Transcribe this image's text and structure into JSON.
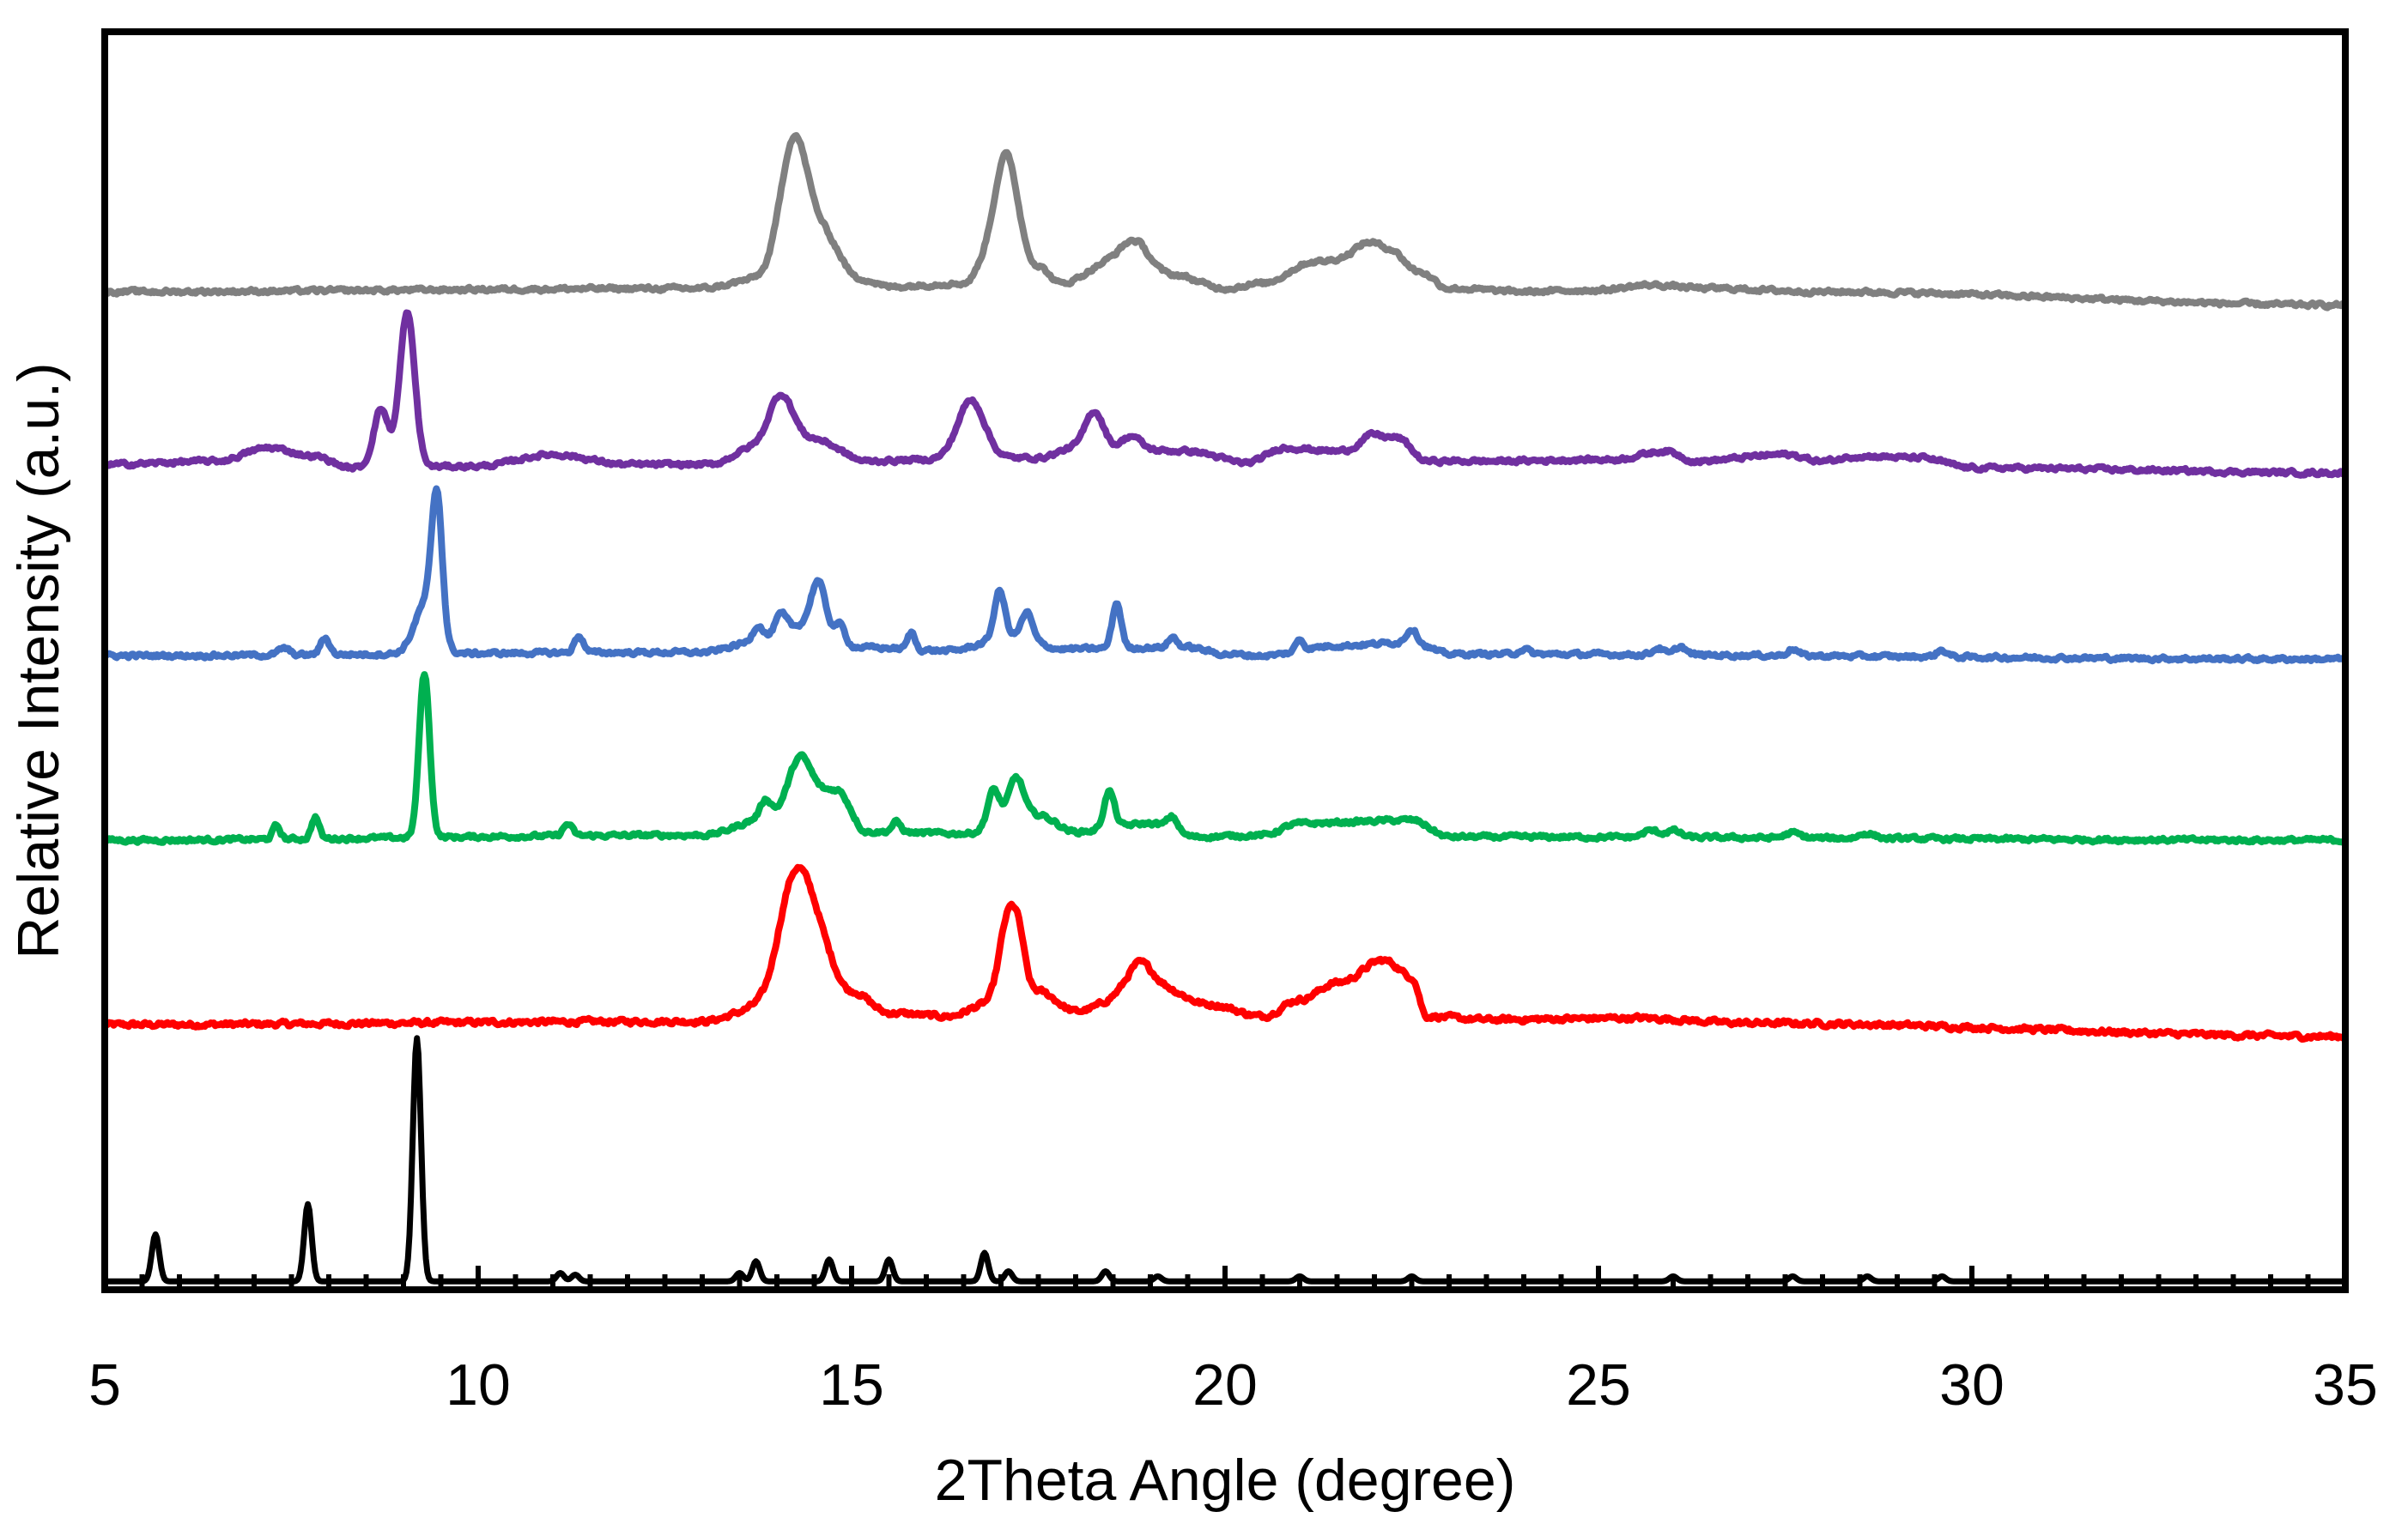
{
  "chart_data": {
    "type": "line",
    "title": "",
    "xlabel": "2Theta Angle (degree)",
    "ylabel": "Relative Intensity (a.u.)",
    "xlim": [
      5,
      35
    ],
    "ylim": [
      0,
      7.5
    ],
    "xticks": [
      5,
      10,
      15,
      20,
      25,
      30,
      35
    ],
    "minor_tick_step": 0.5,
    "grid": false,
    "legend": "none",
    "series": [
      {
        "name": "black",
        "color": "#000000",
        "offset": 0.0,
        "noise": 0.0,
        "points": [
          [
            5,
            0.05
          ],
          [
            5.7,
            0.05
          ],
          [
            7.7,
            0.05
          ],
          [
            9.2,
            0.05
          ],
          [
            35,
            0.05
          ]
        ],
        "peaks": [
          {
            "x": 5.68,
            "h": 0.28,
            "w": 0.05
          },
          {
            "x": 7.72,
            "h": 0.46,
            "w": 0.05
          },
          {
            "x": 9.18,
            "h": 1.45,
            "w": 0.055
          },
          {
            "x": 11.1,
            "h": 0.05,
            "w": 0.05
          },
          {
            "x": 11.3,
            "h": 0.04,
            "w": 0.05
          },
          {
            "x": 13.5,
            "h": 0.05,
            "w": 0.05
          },
          {
            "x": 13.72,
            "h": 0.12,
            "w": 0.05
          },
          {
            "x": 14.7,
            "h": 0.13,
            "w": 0.05
          },
          {
            "x": 15.5,
            "h": 0.13,
            "w": 0.05
          },
          {
            "x": 16.78,
            "h": 0.17,
            "w": 0.05
          },
          {
            "x": 17.1,
            "h": 0.06,
            "w": 0.05
          },
          {
            "x": 18.4,
            "h": 0.06,
            "w": 0.05
          },
          {
            "x": 19.1,
            "h": 0.03,
            "w": 0.05
          },
          {
            "x": 21.0,
            "h": 0.03,
            "w": 0.05
          },
          {
            "x": 22.5,
            "h": 0.03,
            "w": 0.05
          },
          {
            "x": 26.0,
            "h": 0.03,
            "w": 0.05
          },
          {
            "x": 27.6,
            "h": 0.03,
            "w": 0.05
          },
          {
            "x": 28.6,
            "h": 0.03,
            "w": 0.05
          },
          {
            "x": 29.6,
            "h": 0.03,
            "w": 0.05
          }
        ]
      },
      {
        "name": "red",
        "color": "#ff0000",
        "offset": 1.58,
        "noise": 0.025,
        "points": [
          [
            5,
            0.0
          ],
          [
            13,
            0.02
          ],
          [
            13.8,
            0.1
          ],
          [
            14.5,
            0.5
          ],
          [
            15,
            0.2
          ],
          [
            15.5,
            0.07
          ],
          [
            16.3,
            0.05
          ],
          [
            16.8,
            0.12
          ],
          [
            17.5,
            0.2
          ],
          [
            18,
            0.08
          ],
          [
            19,
            0.25
          ],
          [
            19.8,
            0.12
          ],
          [
            20.5,
            0.05
          ],
          [
            21,
            0.15
          ],
          [
            21.5,
            0.25
          ],
          [
            22.2,
            0.33
          ],
          [
            22.5,
            0.28
          ],
          [
            22.7,
            0.05
          ],
          [
            23.5,
            0.03
          ],
          [
            25.5,
            0.04
          ],
          [
            27,
            0.01
          ],
          [
            35,
            -0.07
          ]
        ],
        "peaks": [
          {
            "x": 14.22,
            "h": 0.55,
            "w": 0.22
          },
          {
            "x": 17.1,
            "h": 0.5,
            "w": 0.12
          },
          {
            "x": 17.25,
            "h": 0.2,
            "w": 0.08
          },
          {
            "x": 18.85,
            "h": 0.13,
            "w": 0.15
          },
          {
            "x": 22.05,
            "h": 0.06,
            "w": 0.2
          }
        ]
      },
      {
        "name": "green",
        "color": "#00b050",
        "offset": 2.68,
        "noise": 0.02,
        "points": [
          [
            5,
            0.0
          ],
          [
            13,
            0.03
          ],
          [
            14,
            0.15
          ],
          [
            14.8,
            0.3
          ],
          [
            15.2,
            0.05
          ],
          [
            16.5,
            0.04
          ],
          [
            17.5,
            0.15
          ],
          [
            18,
            0.05
          ],
          [
            19,
            0.1
          ],
          [
            19.6,
            0.02
          ],
          [
            20.5,
            0.03
          ],
          [
            21,
            0.1
          ],
          [
            22.5,
            0.12
          ],
          [
            23,
            0.02
          ],
          [
            35,
            0.0
          ]
        ],
        "peaks": [
          {
            "x": 7.3,
            "h": 0.08,
            "w": 0.05
          },
          {
            "x": 7.82,
            "h": 0.13,
            "w": 0.05
          },
          {
            "x": 9.28,
            "h": 0.98,
            "w": 0.07
          },
          {
            "x": 11.2,
            "h": 0.07,
            "w": 0.06
          },
          {
            "x": 13.85,
            "h": 0.1,
            "w": 0.07
          },
          {
            "x": 14.3,
            "h": 0.3,
            "w": 0.15
          },
          {
            "x": 15.6,
            "h": 0.06,
            "w": 0.06
          },
          {
            "x": 16.9,
            "h": 0.22,
            "w": 0.08
          },
          {
            "x": 17.2,
            "h": 0.25,
            "w": 0.1
          },
          {
            "x": 18.45,
            "h": 0.22,
            "w": 0.07
          },
          {
            "x": 19.3,
            "h": 0.08,
            "w": 0.07
          },
          {
            "x": 25.7,
            "h": 0.04,
            "w": 0.1
          },
          {
            "x": 26.0,
            "h": 0.04,
            "w": 0.1
          },
          {
            "x": 27.6,
            "h": 0.03,
            "w": 0.1
          },
          {
            "x": 28.6,
            "h": 0.03,
            "w": 0.1
          }
        ]
      },
      {
        "name": "blue",
        "color": "#4472c4",
        "offset": 3.78,
        "noise": 0.02,
        "points": [
          [
            5,
            0.0
          ],
          [
            13,
            0.02
          ],
          [
            13.7,
            0.08
          ],
          [
            14.5,
            0.2
          ],
          [
            15.1,
            0.05
          ],
          [
            16.3,
            0.03
          ],
          [
            17.2,
            0.12
          ],
          [
            17.8,
            0.04
          ],
          [
            19.5,
            0.05
          ],
          [
            20,
            0.01
          ],
          [
            20.5,
            0.0
          ],
          [
            21.5,
            0.06
          ],
          [
            22.5,
            0.08
          ],
          [
            23,
            0.01
          ],
          [
            35,
            -0.02
          ]
        ],
        "peaks": [
          {
            "x": 7.4,
            "h": 0.04,
            "w": 0.07
          },
          {
            "x": 7.95,
            "h": 0.1,
            "w": 0.06
          },
          {
            "x": 9.3,
            "h": 0.3,
            "w": 0.15
          },
          {
            "x": 9.45,
            "h": 0.8,
            "w": 0.07
          },
          {
            "x": 11.35,
            "h": 0.1,
            "w": 0.06
          },
          {
            "x": 13.75,
            "h": 0.1,
            "w": 0.07
          },
          {
            "x": 14.05,
            "h": 0.12,
            "w": 0.08
          },
          {
            "x": 14.55,
            "h": 0.25,
            "w": 0.09
          },
          {
            "x": 14.85,
            "h": 0.08,
            "w": 0.06
          },
          {
            "x": 15.8,
            "h": 0.1,
            "w": 0.05
          },
          {
            "x": 16.98,
            "h": 0.28,
            "w": 0.07
          },
          {
            "x": 17.35,
            "h": 0.15,
            "w": 0.07
          },
          {
            "x": 18.55,
            "h": 0.27,
            "w": 0.06
          },
          {
            "x": 19.3,
            "h": 0.06,
            "w": 0.06
          },
          {
            "x": 21.0,
            "h": 0.07,
            "w": 0.05
          },
          {
            "x": 22.5,
            "h": 0.08,
            "w": 0.07
          },
          {
            "x": 24.0,
            "h": 0.03,
            "w": 0.07
          },
          {
            "x": 25.8,
            "h": 0.04,
            "w": 0.07
          },
          {
            "x": 26.1,
            "h": 0.05,
            "w": 0.07
          },
          {
            "x": 27.6,
            "h": 0.04,
            "w": 0.07
          },
          {
            "x": 29.6,
            "h": 0.04,
            "w": 0.07
          }
        ]
      },
      {
        "name": "purple",
        "color": "#7030a0",
        "offset": 4.92,
        "noise": 0.02,
        "points": [
          [
            5,
            0.0
          ],
          [
            6.5,
            0.02
          ],
          [
            7.2,
            0.1
          ],
          [
            7.8,
            0.05
          ],
          [
            8.3,
            -0.02
          ],
          [
            10,
            -0.01
          ],
          [
            11,
            0.06
          ],
          [
            12,
            0.0
          ],
          [
            13.1,
            0.0
          ],
          [
            13.7,
            0.1
          ],
          [
            14.5,
            0.15
          ],
          [
            15.2,
            0.02
          ],
          [
            16.1,
            0.03
          ],
          [
            17.5,
            0.04
          ],
          [
            18,
            0.1
          ],
          [
            19.5,
            0.08
          ],
          [
            20.3,
            0.01
          ],
          [
            20.8,
            0.1
          ],
          [
            21.5,
            0.08
          ],
          [
            22.3,
            0.16
          ],
          [
            22.7,
            0.02
          ],
          [
            23.5,
            0.02
          ],
          [
            25.2,
            0.03
          ],
          [
            25.9,
            0.08
          ],
          [
            26.3,
            0.02
          ],
          [
            27.5,
            0.06
          ],
          [
            28,
            0.02
          ],
          [
            28.5,
            0.05
          ],
          [
            29.3,
            0.04
          ],
          [
            30,
            -0.02
          ],
          [
            35,
            -0.05
          ]
        ],
        "peaks": [
          {
            "x": 8.7,
            "h": 0.35,
            "w": 0.1
          },
          {
            "x": 9.05,
            "h": 0.92,
            "w": 0.1
          },
          {
            "x": 14.05,
            "h": 0.3,
            "w": 0.16
          },
          {
            "x": 16.6,
            "h": 0.35,
            "w": 0.18
          },
          {
            "x": 18.25,
            "h": 0.22,
            "w": 0.12
          },
          {
            "x": 18.75,
            "h": 0.08,
            "w": 0.12
          },
          {
            "x": 21.95,
            "h": 0.05,
            "w": 0.12
          }
        ]
      },
      {
        "name": "gray",
        "color": "#808080",
        "offset": 5.95,
        "noise": 0.02,
        "points": [
          [
            5,
            0.0
          ],
          [
            13,
            0.02
          ],
          [
            13.8,
            0.08
          ],
          [
            14.6,
            0.35
          ],
          [
            15.1,
            0.08
          ],
          [
            15.5,
            0.03
          ],
          [
            16.5,
            0.05
          ],
          [
            17,
            0.35
          ],
          [
            17.5,
            0.15
          ],
          [
            17.8,
            0.05
          ],
          [
            18.5,
            0.18
          ],
          [
            19.3,
            0.1
          ],
          [
            20,
            0.02
          ],
          [
            20.5,
            0.05
          ],
          [
            21.2,
            0.18
          ],
          [
            22.2,
            0.25
          ],
          [
            22.6,
            0.12
          ],
          [
            23,
            0.02
          ],
          [
            24,
            0.0
          ],
          [
            25,
            0.01
          ],
          [
            25.7,
            0.04
          ],
          [
            26.5,
            0.02
          ],
          [
            28,
            0.0
          ],
          [
            35,
            -0.08
          ]
        ],
        "peaks": [
          {
            "x": 14.22,
            "h": 0.7,
            "w": 0.18
          },
          {
            "x": 17.08,
            "h": 0.48,
            "w": 0.14
          },
          {
            "x": 18.8,
            "h": 0.15,
            "w": 0.18
          },
          {
            "x": 21.9,
            "h": 0.06,
            "w": 0.15
          }
        ]
      }
    ]
  }
}
